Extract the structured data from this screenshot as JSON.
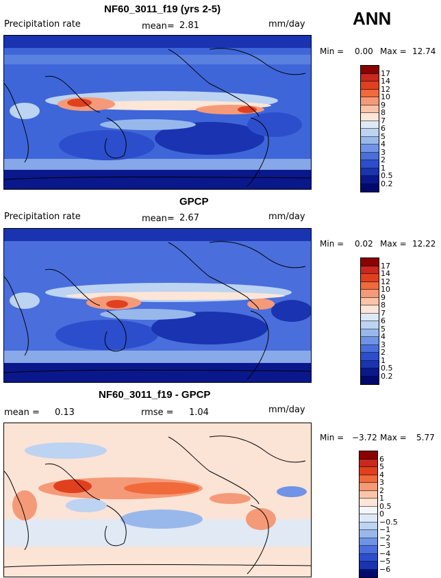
{
  "season": "ANN",
  "panels": [
    {
      "title": "NF60_3011_f19 (yrs 2-5)",
      "left_label": "Precipitation rate",
      "stat1_label": "mean=",
      "stat1_value": "2.81",
      "stat2_label": "",
      "stat2_value": "",
      "units": "mm/day",
      "min_label": "Min =",
      "min_value": "0.00",
      "max_label": "Max =",
      "max_value": "12.74",
      "palette": "precip",
      "colorbar": [
        "17",
        "14",
        "12",
        "10",
        "9",
        "8",
        "7",
        "6",
        "5",
        "4",
        "3",
        "2",
        "1",
        "0.5",
        "0.2"
      ]
    },
    {
      "title": "GPCP",
      "left_label": "Precipitation rate",
      "stat1_label": "mean=",
      "stat1_value": "2.67",
      "stat2_label": "",
      "stat2_value": "",
      "units": "mm/day",
      "min_label": "Min =",
      "min_value": "0.02",
      "max_label": "Max =",
      "max_value": "12.22",
      "palette": "precip",
      "colorbar": [
        "17",
        "14",
        "12",
        "10",
        "9",
        "8",
        "7",
        "6",
        "5",
        "4",
        "3",
        "2",
        "1",
        "0.5",
        "0.2"
      ]
    },
    {
      "title": "NF60_3011_f19 - GPCP",
      "left_label": "",
      "stat1_label": "mean =",
      "stat1_value": "0.13",
      "stat2_label": "rmse =",
      "stat2_value": "1.04",
      "units": "mm/day",
      "min_label": "Min =",
      "min_value": "−3.72",
      "max_label": "Max =",
      "max_value": "5.77",
      "palette": "diff",
      "colorbar": [
        "6",
        "5",
        "4",
        "3",
        "2",
        "1",
        "0.5",
        "0",
        "−0.5",
        "−1",
        "−2",
        "−3",
        "−4",
        "−5",
        "−6"
      ]
    }
  ],
  "colors": {
    "precip": [
      "#8b0000",
      "#c8281e",
      "#e0401e",
      "#f06a3c",
      "#f59a78",
      "#fbc4a8",
      "#fde6d8",
      "#dde9f7",
      "#bcd3f2",
      "#98b8ec",
      "#6f93e6",
      "#4a6edc",
      "#2c4ecc",
      "#1a33b0",
      "#0a188c",
      "#000a6e"
    ],
    "diff": [
      "#8b0000",
      "#c8281e",
      "#e0401e",
      "#f06a3c",
      "#f59a78",
      "#fbc4a8",
      "#fde6d8",
      "#f4f6fb",
      "#dde9f7",
      "#bcd3f2",
      "#98b8ec",
      "#6f93e6",
      "#4a6edc",
      "#2c4ecc",
      "#1a33b0",
      "#000a6e"
    ]
  }
}
